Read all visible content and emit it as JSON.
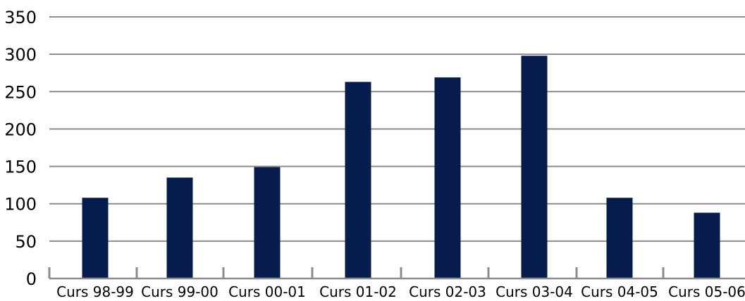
{
  "chart_data": {
    "type": "bar",
    "title": "",
    "xlabel": "",
    "ylabel": "",
    "categories": [
      "Curs 98-99",
      "Curs 99-00",
      "Curs 00-01",
      "Curs 01-02",
      "Curs 02-03",
      "Curs 03-04",
      "Curs 04-05",
      "Curs 05-06"
    ],
    "values": [
      108,
      135,
      149,
      263,
      269,
      298,
      108,
      88
    ],
    "ylim": [
      0,
      350
    ],
    "yticks": [
      0,
      50,
      100,
      150,
      200,
      250,
      300,
      350
    ],
    "grid": "horizontal",
    "legend": "none",
    "bar_color": "#061c4c"
  }
}
